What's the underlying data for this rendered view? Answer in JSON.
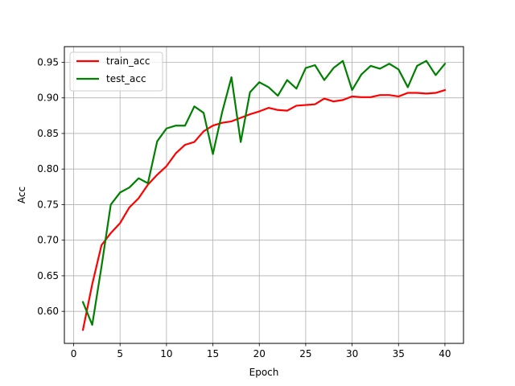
{
  "chart_data": {
    "type": "line",
    "title": "",
    "xlabel": "Epoch",
    "ylabel": "Acc",
    "xlim": [
      -1,
      42
    ],
    "ylim": [
      0.555,
      0.972
    ],
    "xticks": [
      0,
      5,
      10,
      15,
      20,
      25,
      30,
      35,
      40
    ],
    "xtick_labels": [
      "0",
      "5",
      "10",
      "15",
      "20",
      "25",
      "30",
      "35",
      "40"
    ],
    "yticks": [
      0.6,
      0.65,
      0.7,
      0.75,
      0.8,
      0.85,
      0.9,
      0.95
    ],
    "ytick_labels": [
      "0.60",
      "0.65",
      "0.70",
      "0.75",
      "0.80",
      "0.85",
      "0.90",
      "0.95"
    ],
    "grid": true,
    "legend_position": "top-left",
    "x": [
      1,
      2,
      3,
      4,
      5,
      6,
      7,
      8,
      9,
      10,
      11,
      12,
      13,
      14,
      15,
      16,
      17,
      18,
      19,
      20,
      21,
      22,
      23,
      24,
      25,
      26,
      27,
      28,
      29,
      30,
      31,
      32,
      33,
      34,
      35,
      36,
      37,
      38,
      39,
      40
    ],
    "series": [
      {
        "name": "train_acc",
        "color": "#ff0000",
        "values": [
          0.574,
          0.638,
          0.693,
          0.71,
          0.724,
          0.746,
          0.759,
          0.778,
          0.792,
          0.804,
          0.822,
          0.834,
          0.838,
          0.853,
          0.861,
          0.865,
          0.867,
          0.872,
          0.877,
          0.881,
          0.886,
          0.883,
          0.882,
          0.889,
          0.89,
          0.891,
          0.899,
          0.895,
          0.897,
          0.902,
          0.901,
          0.901,
          0.904,
          0.904,
          0.902,
          0.907,
          0.907,
          0.906,
          0.907,
          0.911
        ]
      },
      {
        "name": "test_acc",
        "color": "#008000",
        "values": [
          0.613,
          0.581,
          0.663,
          0.75,
          0.767,
          0.774,
          0.787,
          0.78,
          0.839,
          0.857,
          0.861,
          0.861,
          0.888,
          0.879,
          0.821,
          0.88,
          0.929,
          0.838,
          0.908,
          0.922,
          0.915,
          0.903,
          0.925,
          0.913,
          0.942,
          0.946,
          0.925,
          0.942,
          0.952,
          0.911,
          0.933,
          0.945,
          0.941,
          0.948,
          0.94,
          0.915,
          0.945,
          0.952,
          0.932,
          0.948
        ]
      }
    ]
  }
}
